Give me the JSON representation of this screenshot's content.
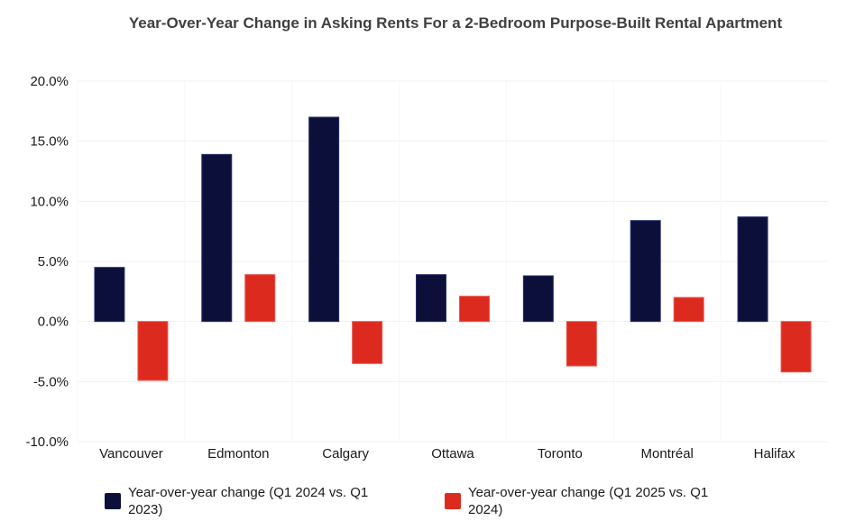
{
  "chart_data": {
    "type": "bar",
    "title": "Year-Over-Year Change in Asking Rents For a 2-Bedroom Purpose-Built Rental Apartment",
    "categories": [
      "Vancouver",
      "Edmonton",
      "Calgary",
      "Ottawa",
      "Toronto",
      "Montréal",
      "Halifax"
    ],
    "series": [
      {
        "name": "Year-over-year change (Q1 2024 vs. Q1 2023)",
        "color": "#0b0f3a",
        "values": [
          4.5,
          13.9,
          17.0,
          3.9,
          3.8,
          8.4,
          8.7
        ]
      },
      {
        "name": "Year-over-year change (Q1 2025 vs. Q1 2024)",
        "color": "#dd2a1f",
        "values": [
          -4.9,
          3.9,
          -3.5,
          2.1,
          -3.7,
          2.0,
          -4.2
        ]
      }
    ],
    "ylim": [
      -10,
      20
    ],
    "yticks": [
      20,
      15,
      10,
      5,
      0,
      -5,
      -10
    ],
    "ytick_labels": [
      "20.0%",
      "15.0%",
      "10.0%",
      "5.0%",
      "0.0%",
      "-5.0%",
      "-10.0%"
    ],
    "xlabel": "",
    "ylabel": "",
    "legend_position": "bottom",
    "grid": true
  }
}
